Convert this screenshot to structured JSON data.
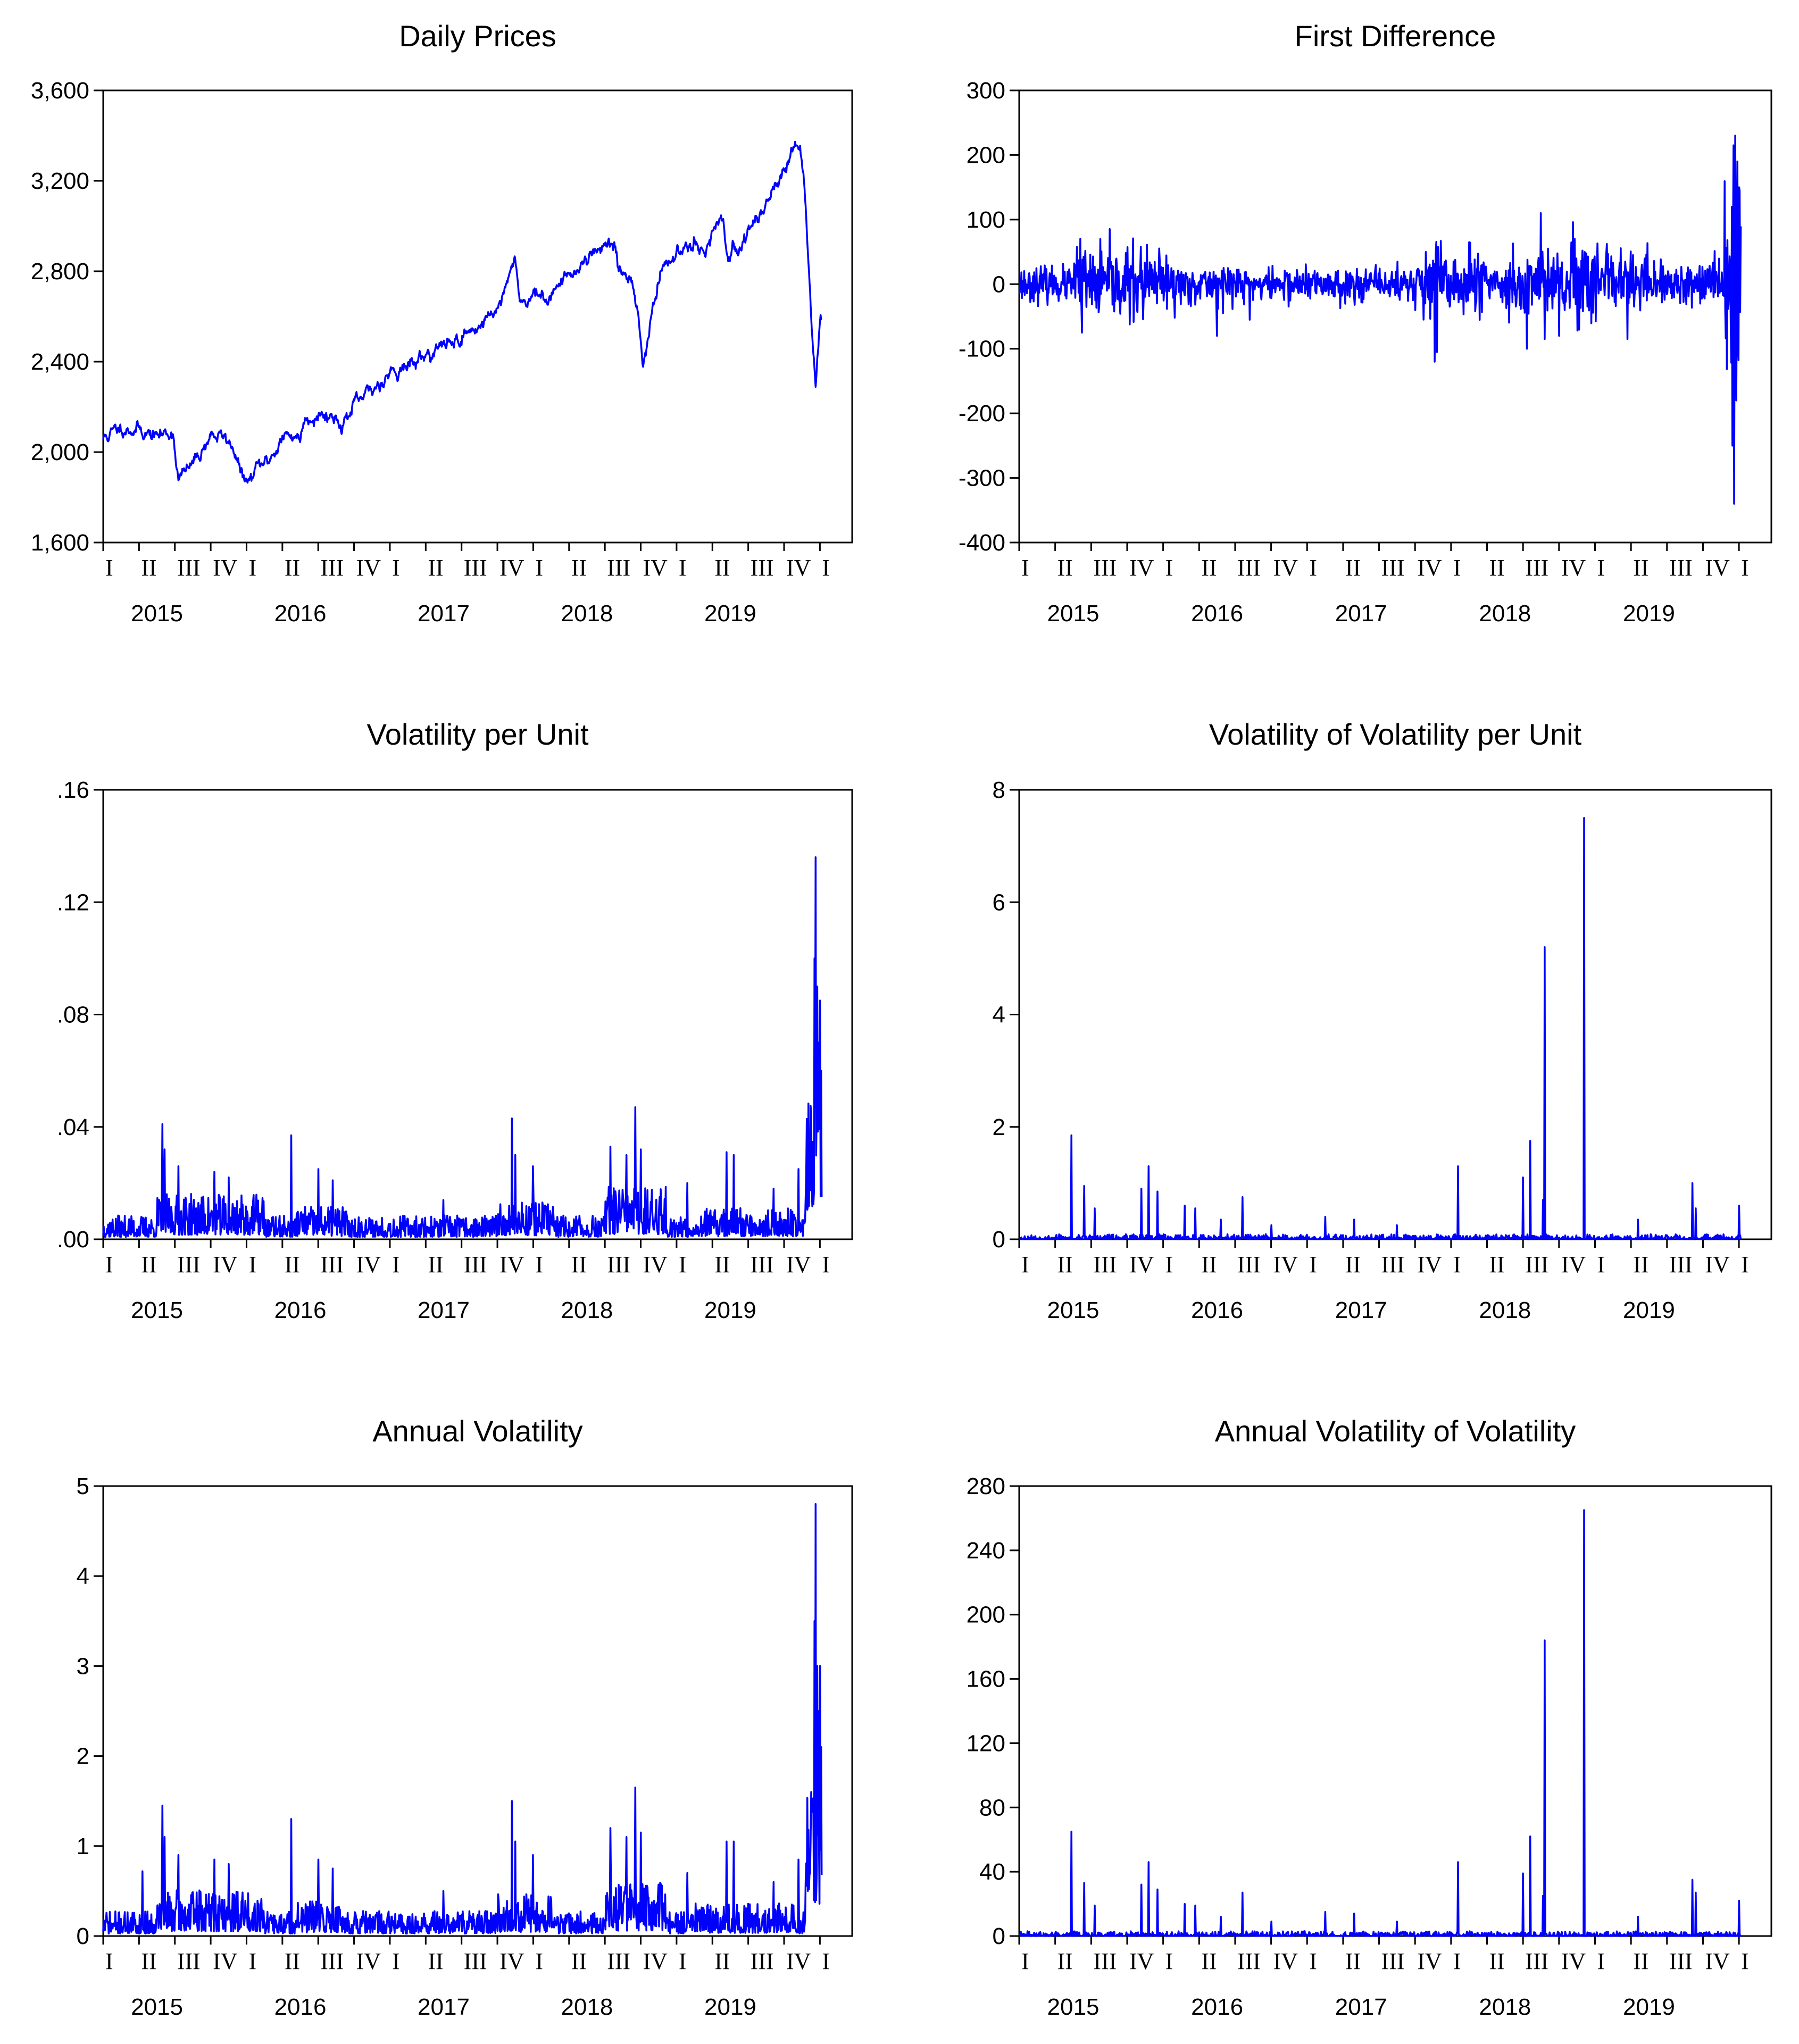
{
  "figure": {
    "series_color": "#0000ff",
    "background": "#ffffff"
  },
  "chart_data": [
    {
      "id": "daily-prices",
      "type": "line",
      "title": "Daily Prices",
      "yticks": [
        "1,600",
        "2,000",
        "2,400",
        "2,800",
        "3,200",
        "3,600"
      ],
      "ylim": [
        1600,
        3600
      ],
      "quarters": [
        "I",
        "II",
        "III",
        "IV",
        "I",
        "II",
        "III",
        "IV",
        "I",
        "II",
        "III",
        "IV",
        "I",
        "II",
        "III",
        "IV",
        "I",
        "II",
        "III",
        "IV",
        "I"
      ],
      "years": [
        "2015",
        "2016",
        "2017",
        "2018",
        "2019"
      ],
      "xlim": [
        0,
        20.9
      ],
      "generator": "prices",
      "keypoints": [
        [
          0,
          2060
        ],
        [
          0.5,
          2110
        ],
        [
          1,
          2100
        ],
        [
          1.5,
          2070
        ],
        [
          1.95,
          2090
        ],
        [
          2.1,
          1880
        ],
        [
          2.35,
          1920
        ],
        [
          2.55,
          1960
        ],
        [
          2.8,
          2020
        ],
        [
          3,
          2080
        ],
        [
          3.4,
          2060
        ],
        [
          3.65,
          2020
        ],
        [
          3.85,
          1900
        ],
        [
          4.05,
          1860
        ],
        [
          4.3,
          1930
        ],
        [
          4.6,
          1960
        ],
        [
          5,
          2060
        ],
        [
          5.4,
          2080
        ],
        [
          5.5,
          2050
        ],
        [
          5.6,
          2150
        ],
        [
          6,
          2170
        ],
        [
          6.4,
          2160
        ],
        [
          6.7,
          2130
        ],
        [
          7,
          2200
        ],
        [
          7.5,
          2270
        ],
        [
          8,
          2360
        ],
        [
          8.5,
          2380
        ],
        [
          9,
          2430
        ],
        [
          9.5,
          2470
        ],
        [
          10,
          2510
        ],
        [
          10.5,
          2560
        ],
        [
          11,
          2640
        ],
        [
          11.3,
          2740
        ],
        [
          11.5,
          2870
        ],
        [
          11.6,
          2700
        ],
        [
          11.8,
          2650
        ],
        [
          12,
          2720
        ],
        [
          12.3,
          2660
        ],
        [
          12.5,
          2710
        ],
        [
          13,
          2780
        ],
        [
          13.5,
          2860
        ],
        [
          14,
          2920
        ],
        [
          14.25,
          2930
        ],
        [
          14.35,
          2800
        ],
        [
          14.7,
          2790
        ],
        [
          14.9,
          2650
        ],
        [
          15.05,
          2400
        ],
        [
          15.2,
          2500
        ],
        [
          15.5,
          2760
        ],
        [
          16,
          2880
        ],
        [
          16.5,
          2950
        ],
        [
          16.8,
          2880
        ],
        [
          17,
          2970
        ],
        [
          17.3,
          3000
        ],
        [
          17.45,
          2860
        ],
        [
          17.7,
          2900
        ],
        [
          18,
          2970
        ],
        [
          18.4,
          3080
        ],
        [
          18.8,
          3200
        ],
        [
          19.3,
          3330
        ],
        [
          19.45,
          3360
        ],
        [
          19.55,
          3200
        ],
        [
          19.65,
          2950
        ],
        [
          19.8,
          2500
        ],
        [
          19.88,
          2280
        ],
        [
          19.95,
          2450
        ],
        [
          20,
          2600
        ],
        [
          20.05,
          2590
        ]
      ],
      "noise": 18,
      "seed": 11
    },
    {
      "id": "first-difference",
      "type": "line",
      "title": "First Difference",
      "yticks": [
        "-400",
        "-300",
        "-200",
        "-100",
        "0",
        "100",
        "200",
        "300"
      ],
      "ylim": [
        -400,
        300
      ],
      "quarters": [
        "I",
        "II",
        "III",
        "IV",
        "I",
        "II",
        "III",
        "IV",
        "I",
        "II",
        "III",
        "IV",
        "I",
        "II",
        "III",
        "IV",
        "I",
        "II",
        "III",
        "IV",
        "I"
      ],
      "years": [
        "2015",
        "2016",
        "2017",
        "2018",
        "2019"
      ],
      "xlim": [
        0,
        20.9
      ],
      "generator": "diff",
      "base": 18,
      "bursts": [
        [
          1.5,
          3.5,
          2.2
        ],
        [
          3.5,
          4.6,
          2.0
        ],
        [
          5.3,
          6.6,
          1.2
        ],
        [
          11.0,
          13.0,
          2.2
        ],
        [
          13.5,
          16.0,
          2.4
        ],
        [
          16.0,
          17.5,
          1.9
        ],
        [
          17.5,
          19.5,
          1.4
        ]
      ],
      "crash": [
        19.6,
        20.05
      ],
      "spikes": [
        [
          1.7,
          70
        ],
        [
          1.75,
          -75
        ],
        [
          5.5,
          -80
        ],
        [
          6.4,
          -55
        ],
        [
          11.55,
          -120
        ],
        [
          11.6,
          -105
        ],
        [
          12.5,
          65
        ],
        [
          14.1,
          -100
        ],
        [
          14.5,
          110
        ],
        [
          14.6,
          -85
        ],
        [
          14.7,
          55
        ],
        [
          15.0,
          -80
        ],
        [
          16.9,
          -85
        ],
        [
          17.05,
          45
        ],
        [
          19.8,
          120
        ],
        [
          19.82,
          -250
        ],
        [
          19.85,
          215
        ],
        [
          19.87,
          -340
        ],
        [
          19.9,
          230
        ],
        [
          19.92,
          -180
        ],
        [
          19.95,
          190
        ],
        [
          19.98,
          -90
        ],
        [
          20.0,
          150
        ],
        [
          20.02,
          145
        ]
      ],
      "seed": 23
    },
    {
      "id": "volatility-per-unit",
      "type": "line",
      "title": "Volatility per Unit",
      "yticks": [
        ".00",
        ".04",
        ".08",
        ".12",
        ".16"
      ],
      "ylim": [
        0,
        0.16
      ],
      "quarters": [
        "I",
        "II",
        "III",
        "IV",
        "I",
        "II",
        "III",
        "IV",
        "I",
        "II",
        "III",
        "IV",
        "I",
        "II",
        "III",
        "IV",
        "I",
        "II",
        "III",
        "IV",
        "I"
      ],
      "years": [
        "2015",
        "2016",
        "2017",
        "2018",
        "2019"
      ],
      "xlim": [
        0,
        20.9
      ],
      "generator": "vol",
      "base": 0.0055,
      "bursts": [
        [
          1.5,
          4.5,
          1.9
        ],
        [
          5.4,
          6.8,
          1.4
        ],
        [
          11.0,
          12.6,
          1.7
        ],
        [
          14.0,
          15.7,
          2.2
        ],
        [
          16.5,
          19.4,
          1.3
        ]
      ],
      "crash": [
        19.6,
        20.05
      ],
      "crashscale": 0.05,
      "spikes": [
        [
          1.65,
          0.041
        ],
        [
          1.72,
          0.032
        ],
        [
          2.1,
          0.026
        ],
        [
          3.1,
          0.024
        ],
        [
          3.5,
          0.022
        ],
        [
          5.25,
          0.037
        ],
        [
          6.0,
          0.025
        ],
        [
          6.4,
          0.021
        ],
        [
          9.5,
          0.014
        ],
        [
          11.4,
          0.043
        ],
        [
          11.5,
          0.03
        ],
        [
          12.0,
          0.026
        ],
        [
          14.15,
          0.033
        ],
        [
          14.6,
          0.03
        ],
        [
          14.85,
          0.047
        ],
        [
          15.0,
          0.032
        ],
        [
          16.3,
          0.02
        ],
        [
          17.4,
          0.031
        ],
        [
          17.6,
          0.03
        ],
        [
          18.7,
          0.018
        ],
        [
          19.4,
          0.025
        ],
        [
          19.75,
          0.045
        ],
        [
          19.85,
          0.1
        ],
        [
          19.88,
          0.136
        ],
        [
          19.92,
          0.09
        ],
        [
          19.96,
          0.07
        ],
        [
          20.0,
          0.085
        ],
        [
          20.03,
          0.06
        ]
      ],
      "seed": 37
    },
    {
      "id": "volatility-of-volatility",
      "type": "line",
      "title": "Volatility of Volatility per Unit",
      "yticks": [
        "0",
        "2",
        "4",
        "6",
        "8"
      ],
      "ylim": [
        0,
        8
      ],
      "quarters": [
        "I",
        "II",
        "III",
        "IV",
        "I",
        "II",
        "III",
        "IV",
        "I",
        "II",
        "III",
        "IV",
        "I",
        "II",
        "III",
        "IV",
        "I",
        "II",
        "III",
        "IV",
        "I"
      ],
      "years": [
        "2015",
        "2016",
        "2017",
        "2018",
        "2019"
      ],
      "xlim": [
        0,
        20.9
      ],
      "generator": "volvol",
      "base": 0.03,
      "spikes": [
        [
          1.45,
          1.85
        ],
        [
          1.8,
          0.95
        ],
        [
          2.1,
          0.55
        ],
        [
          3.4,
          0.9
        ],
        [
          3.6,
          1.3
        ],
        [
          3.85,
          0.85
        ],
        [
          4.6,
          0.6
        ],
        [
          4.9,
          0.55
        ],
        [
          5.6,
          0.35
        ],
        [
          6.2,
          0.75
        ],
        [
          7.0,
          0.25
        ],
        [
          8.5,
          0.4
        ],
        [
          9.3,
          0.35
        ],
        [
          10.5,
          0.25
        ],
        [
          12.2,
          1.3
        ],
        [
          14.0,
          1.1
        ],
        [
          14.2,
          1.75
        ],
        [
          14.55,
          0.7
        ],
        [
          14.6,
          5.2
        ],
        [
          15.7,
          7.5
        ],
        [
          17.2,
          0.35
        ],
        [
          18.7,
          1.0
        ],
        [
          18.8,
          0.55
        ],
        [
          20.0,
          0.6
        ]
      ],
      "seed": 53
    },
    {
      "id": "annual-volatility",
      "type": "line",
      "title": "Annual Volatility",
      "yticks": [
        "0",
        "1",
        "2",
        "3",
        "4",
        "5"
      ],
      "ylim": [
        0,
        5
      ],
      "quarters": [
        "I",
        "II",
        "III",
        "IV",
        "I",
        "II",
        "III",
        "IV",
        "I",
        "II",
        "III",
        "IV",
        "I",
        "II",
        "III",
        "IV",
        "I",
        "II",
        "III",
        "IV",
        "I"
      ],
      "years": [
        "2015",
        "2016",
        "2017",
        "2018",
        "2019"
      ],
      "xlim": [
        0,
        20.9
      ],
      "generator": "vol",
      "base": 0.18,
      "bursts": [
        [
          1.5,
          4.5,
          1.9
        ],
        [
          5.4,
          6.8,
          1.4
        ],
        [
          11.0,
          12.6,
          1.7
        ],
        [
          14.0,
          15.7,
          2.2
        ],
        [
          16.5,
          19.4,
          1.3
        ]
      ],
      "crash": [
        19.6,
        20.05
      ],
      "crashscale": 1.7,
      "spikes": [
        [
          1.1,
          0.72
        ],
        [
          1.65,
          1.45
        ],
        [
          1.72,
          1.1
        ],
        [
          2.1,
          0.9
        ],
        [
          3.1,
          0.85
        ],
        [
          3.5,
          0.8
        ],
        [
          5.25,
          1.3
        ],
        [
          6.0,
          0.85
        ],
        [
          6.4,
          0.75
        ],
        [
          9.5,
          0.5
        ],
        [
          11.4,
          1.5
        ],
        [
          11.5,
          1.05
        ],
        [
          12.0,
          0.9
        ],
        [
          14.15,
          1.2
        ],
        [
          14.6,
          1.1
        ],
        [
          14.85,
          1.65
        ],
        [
          15.0,
          1.15
        ],
        [
          16.3,
          0.7
        ],
        [
          17.4,
          1.05
        ],
        [
          17.6,
          1.05
        ],
        [
          18.7,
          0.6
        ],
        [
          19.4,
          0.85
        ],
        [
          19.75,
          1.6
        ],
        [
          19.85,
          3.5
        ],
        [
          19.88,
          4.8
        ],
        [
          19.92,
          3.0
        ],
        [
          19.96,
          2.5
        ],
        [
          20.0,
          3.0
        ],
        [
          20.03,
          2.1
        ]
      ],
      "seed": 71
    },
    {
      "id": "annual-volatility-of-volatility",
      "type": "line",
      "title": "Annual Volatility of Volatility",
      "yticks": [
        "0",
        "40",
        "80",
        "120",
        "160",
        "200",
        "240",
        "280"
      ],
      "ylim": [
        0,
        280
      ],
      "quarters": [
        "I",
        "II",
        "III",
        "IV",
        "I",
        "II",
        "III",
        "IV",
        "I",
        "II",
        "III",
        "IV",
        "I",
        "II",
        "III",
        "IV",
        "I",
        "II",
        "III",
        "IV",
        "I"
      ],
      "years": [
        "2015",
        "2016",
        "2017",
        "2018",
        "2019"
      ],
      "xlim": [
        0,
        20.9
      ],
      "generator": "volvol",
      "base": 1.0,
      "spikes": [
        [
          1.45,
          65
        ],
        [
          1.8,
          33
        ],
        [
          2.1,
          19
        ],
        [
          3.4,
          32
        ],
        [
          3.6,
          46
        ],
        [
          3.85,
          29
        ],
        [
          4.6,
          20
        ],
        [
          4.9,
          19
        ],
        [
          5.6,
          12
        ],
        [
          6.2,
          27
        ],
        [
          7.0,
          9
        ],
        [
          8.5,
          15
        ],
        [
          9.3,
          14
        ],
        [
          10.5,
          9
        ],
        [
          12.2,
          46
        ],
        [
          14.0,
          39
        ],
        [
          14.2,
          62
        ],
        [
          14.55,
          25
        ],
        [
          14.6,
          184
        ],
        [
          15.7,
          265
        ],
        [
          17.2,
          12
        ],
        [
          18.7,
          35
        ],
        [
          18.8,
          27
        ],
        [
          20.0,
          22
        ]
      ],
      "seed": 89
    }
  ]
}
